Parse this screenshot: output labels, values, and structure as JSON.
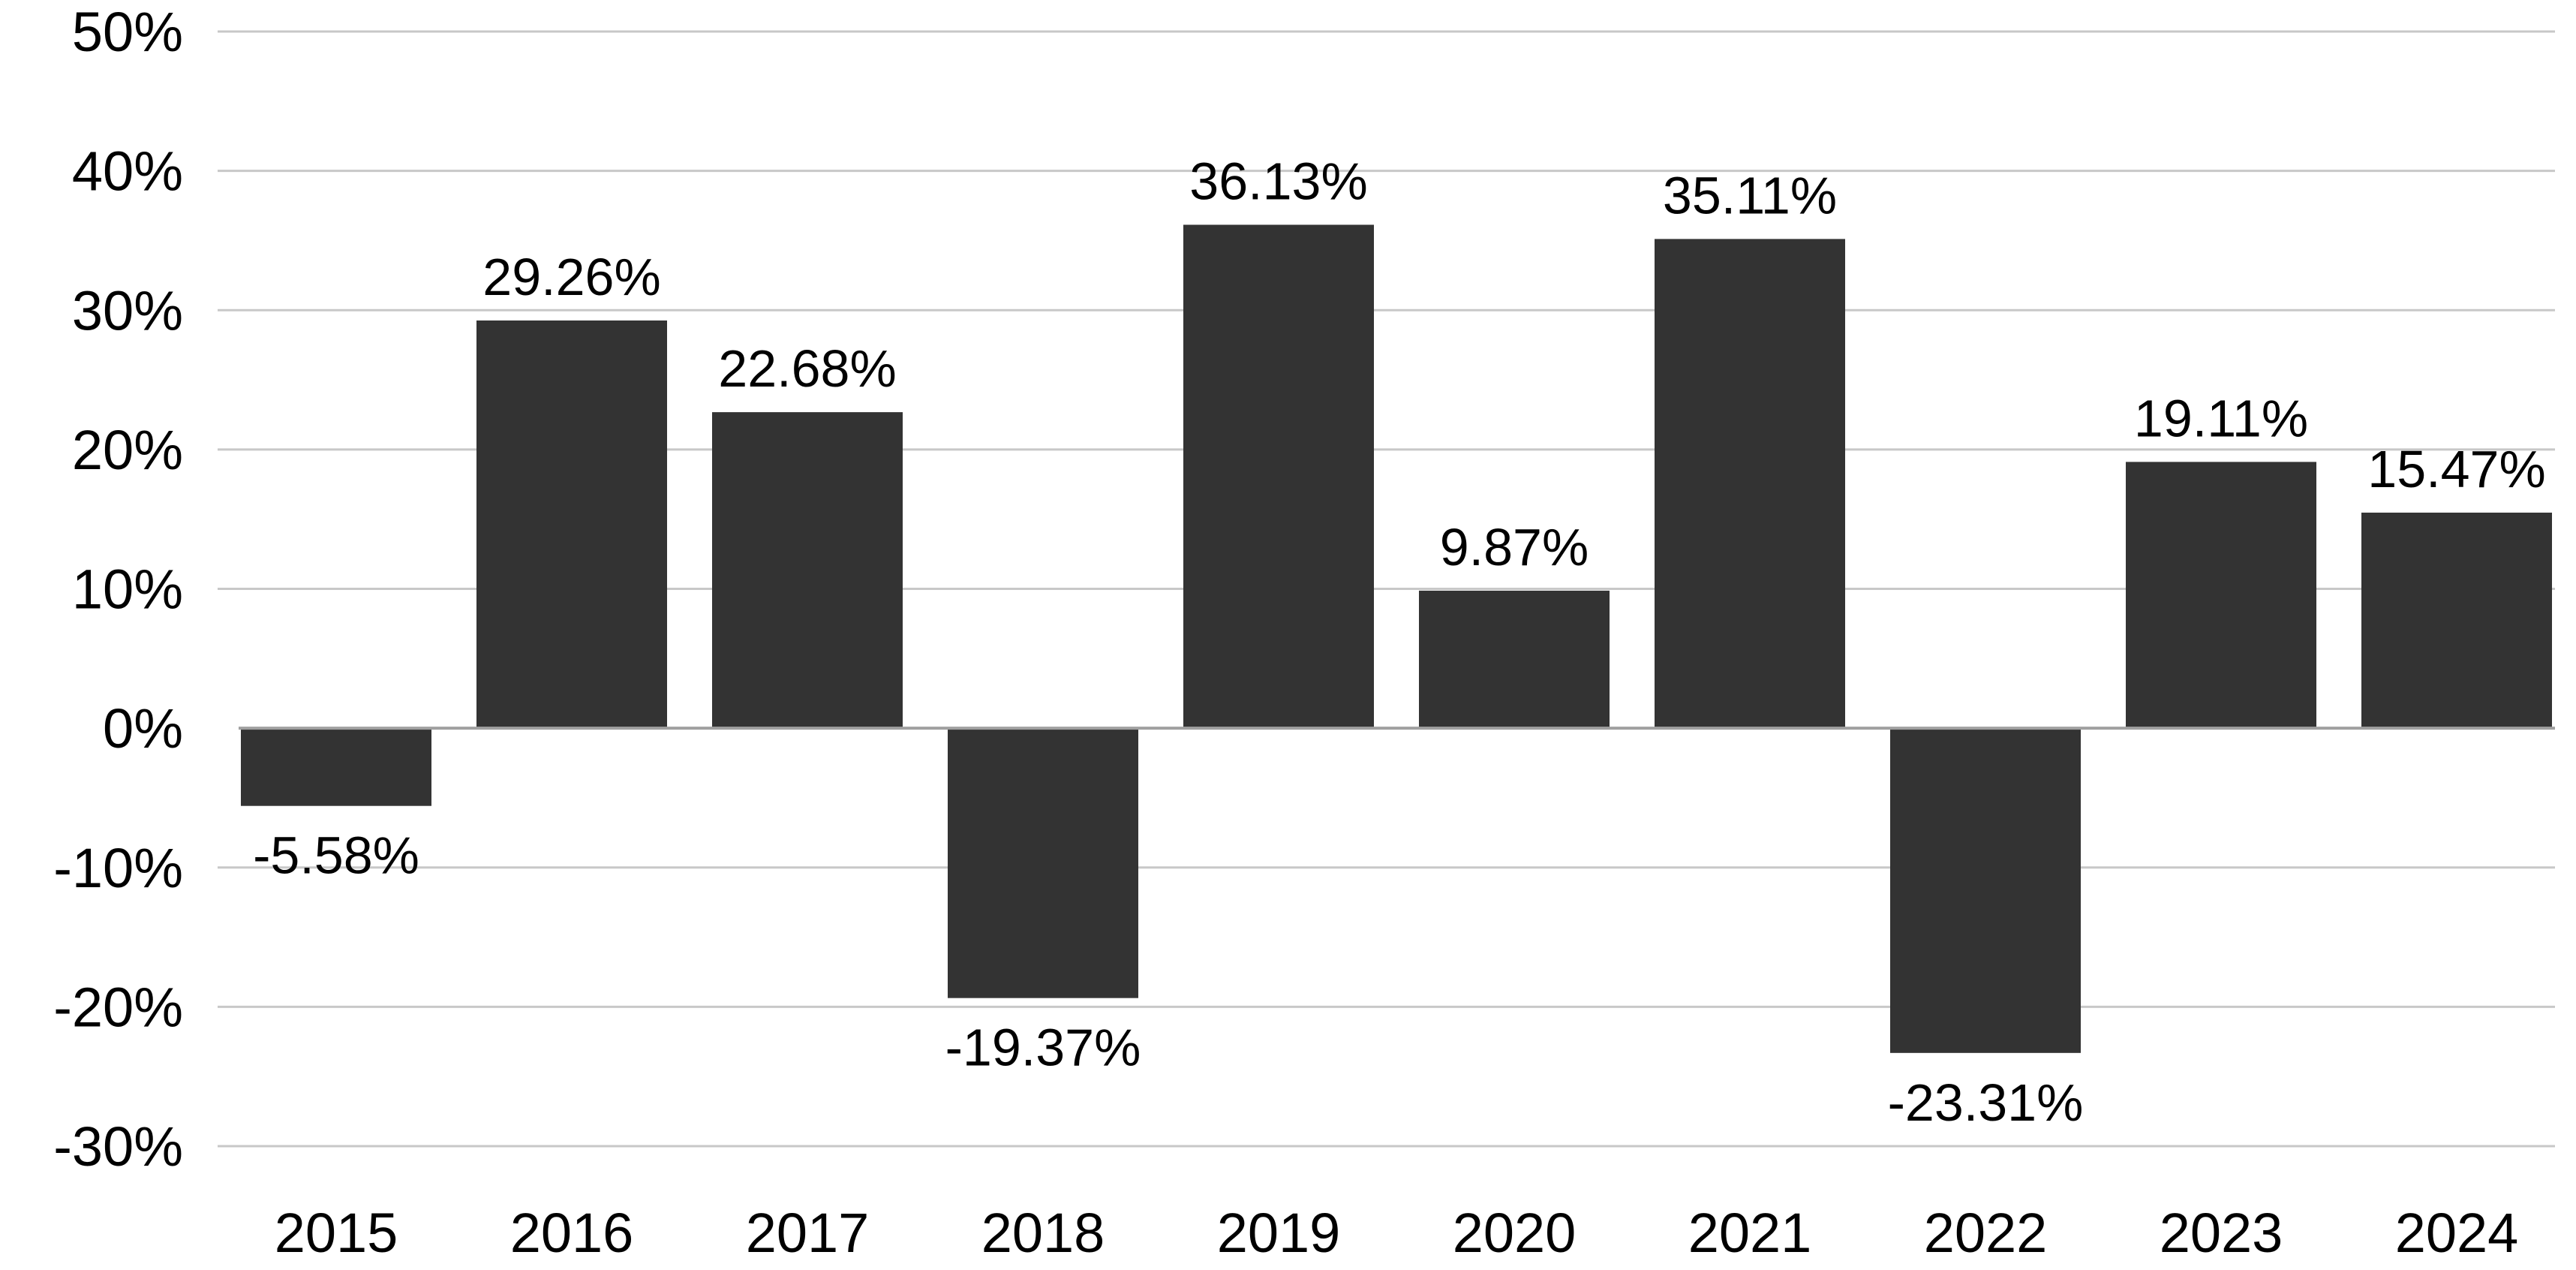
{
  "chart_data": {
    "type": "bar",
    "categories": [
      "2015",
      "2016",
      "2017",
      "2018",
      "2019",
      "2020",
      "2021",
      "2022",
      "2023",
      "2024"
    ],
    "values": [
      -5.58,
      29.26,
      22.68,
      -19.37,
      36.13,
      9.87,
      35.11,
      -23.31,
      19.11,
      15.47
    ],
    "data_labels": [
      "-5.58%",
      "29.26%",
      "22.68%",
      "-19.37%",
      "36.13%",
      "9.87%",
      "35.11%",
      "-23.31%",
      "19.11%",
      "15.47%"
    ],
    "y_ticks": [
      50,
      40,
      30,
      20,
      10,
      0,
      -10,
      -20,
      -30
    ],
    "y_tick_labels": [
      "50%",
      "40%",
      "30%",
      "20%",
      "10%",
      "0%",
      "-10%",
      "-20%",
      "-30%"
    ],
    "ylim": [
      -30,
      50
    ],
    "title": "",
    "xlabel": "",
    "ylabel": "",
    "grid": true,
    "bar_color": "#333333",
    "grid_color": "#c8c8c8"
  }
}
